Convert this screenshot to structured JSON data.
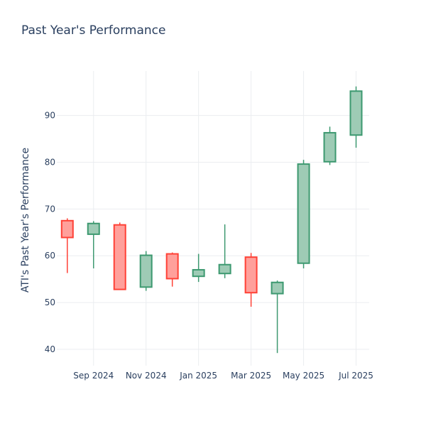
{
  "chart_data": {
    "type": "candlestick",
    "title": "Past Year's Performance",
    "xlabel": "",
    "ylabel": "ATI's Past Year's Performance",
    "ylim": [
      36.5,
      99.5
    ],
    "yticks": [
      40,
      50,
      60,
      70,
      80,
      90
    ],
    "xticks": [
      {
        "label": "Sep 2024",
        "x": 1
      },
      {
        "label": "Nov 2024",
        "x": 3
      },
      {
        "label": "Jan 2025",
        "x": 5
      },
      {
        "label": "Mar 2025",
        "x": 7
      },
      {
        "label": "May 2025",
        "x": 9
      },
      {
        "label": "Jul 2025",
        "x": 11
      }
    ],
    "xlim": [
      -0.4,
      11.5
    ],
    "increasing_color": "#3d9970",
    "increasing_fill": "#9ecbb5",
    "decreasing_color": "#ff4136",
    "decreasing_fill": "#ffa09b",
    "grid": true,
    "candles": [
      {
        "x": 0,
        "open": 67.5,
        "high": 68.0,
        "low": 56.3,
        "close": 63.9
      },
      {
        "x": 1,
        "open": 64.6,
        "high": 67.4,
        "low": 57.3,
        "close": 66.9
      },
      {
        "x": 2,
        "open": 66.6,
        "high": 67.1,
        "low": 52.7,
        "close": 52.8
      },
      {
        "x": 3,
        "open": 53.3,
        "high": 61.0,
        "low": 52.5,
        "close": 60.1
      },
      {
        "x": 4,
        "open": 60.4,
        "high": 60.7,
        "low": 53.4,
        "close": 55.1
      },
      {
        "x": 5,
        "open": 55.6,
        "high": 60.4,
        "low": 54.4,
        "close": 57.0
      },
      {
        "x": 6,
        "open": 56.2,
        "high": 66.7,
        "low": 55.2,
        "close": 58.1
      },
      {
        "x": 7,
        "open": 59.7,
        "high": 60.6,
        "low": 49.1,
        "close": 52.1
      },
      {
        "x": 8,
        "open": 51.9,
        "high": 54.7,
        "low": 39.2,
        "close": 54.3
      },
      {
        "x": 9,
        "open": 58.4,
        "high": 80.5,
        "low": 57.3,
        "close": 79.6
      },
      {
        "x": 10,
        "open": 80.1,
        "high": 87.6,
        "low": 79.4,
        "close": 86.3
      },
      {
        "x": 11,
        "open": 85.8,
        "high": 96.2,
        "low": 83.1,
        "close": 95.2
      }
    ]
  }
}
